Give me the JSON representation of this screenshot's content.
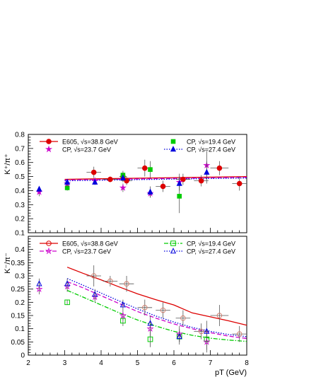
{
  "chart_data": [
    {
      "type": "scatter",
      "panel": "top",
      "ylabel": "K⁺/π⁺",
      "xlim": [
        2,
        8
      ],
      "ylim": [
        0.1,
        0.8
      ],
      "yticks": [
        "0.1",
        "0.2",
        "0.3",
        "0.4",
        "0.5",
        "0.6",
        "0.7",
        "0.8"
      ],
      "legend": [
        {
          "label": "E605, √s=38.8 GeV",
          "color": "#dd0000",
          "marker": "filled-circle",
          "line": "solid"
        },
        {
          "label": "CP, √s=19.4 GeV",
          "color": "#00cc00",
          "marker": "filled-square",
          "line": "none"
        },
        {
          "label": "CP, √s=23.7 GeV",
          "color": "#cc00cc",
          "marker": "star",
          "line": "none"
        },
        {
          "label": "CP, √s=27.4 GeV",
          "color": "#0000dd",
          "marker": "filled-triangle",
          "line": "dotted"
        }
      ],
      "series": [
        {
          "name": "E605, √s=38.8 GeV",
          "color": "#dd0000",
          "marker": "filled-circle",
          "x": [
            3.8,
            4.25,
            4.6,
            4.7,
            5.2,
            5.7,
            6.25,
            6.75,
            7.25,
            7.8
          ],
          "y": [
            0.53,
            0.48,
            0.5,
            0.47,
            0.56,
            0.43,
            0.48,
            0.47,
            0.56,
            0.45
          ],
          "yerr": [
            0.04,
            0.02,
            0.03,
            0.03,
            0.06,
            0.04,
            0.04,
            0.04,
            0.05,
            0.05
          ],
          "xerr": [
            0.2,
            0.2,
            0.1,
            0.15,
            0.2,
            0.2,
            0.2,
            0.2,
            0.25,
            0.2
          ]
        },
        {
          "name": "CP, √s=19.4 GeV",
          "color": "#00cc00",
          "marker": "filled-square",
          "x": [
            3.07,
            4.6,
            5.35,
            6.15
          ],
          "y": [
            0.42,
            0.51,
            0.55,
            0.36
          ],
          "yerr": [
            0.02,
            0.03,
            0.06,
            0.12
          ]
        },
        {
          "name": "CP, √s=23.7 GeV",
          "color": "#cc00cc",
          "marker": "star",
          "x": [
            2.3,
            3.07,
            3.83,
            4.6,
            5.35,
            6.15,
            6.9
          ],
          "y": [
            0.39,
            0.45,
            0.47,
            0.42,
            0.38,
            0.46,
            0.58
          ],
          "yerr": [
            0.03,
            0.02,
            0.02,
            0.03,
            0.03,
            0.06,
            0.1
          ]
        },
        {
          "name": "CP, √s=27.4 GeV",
          "color": "#0000dd",
          "marker": "filled-triangle",
          "x": [
            2.3,
            3.07,
            3.83,
            4.6,
            5.35,
            6.15,
            6.9
          ],
          "y": [
            0.41,
            0.46,
            0.46,
            0.49,
            0.39,
            0.45,
            0.53
          ],
          "yerr": [
            0.02,
            0.02,
            0.02,
            0.03,
            0.04,
            0.05,
            0.08
          ]
        }
      ],
      "curves": [
        {
          "color": "#dd0000",
          "dash": "solid",
          "x": [
            3,
            8
          ],
          "y": [
            0.48,
            0.5
          ]
        },
        {
          "color": "#cc00cc",
          "dash": "dashed",
          "x": [
            3,
            8
          ],
          "y": [
            0.475,
            0.495
          ]
        },
        {
          "color": "#0000dd",
          "dash": "dotted",
          "x": [
            3,
            8
          ],
          "y": [
            0.47,
            0.49
          ]
        }
      ]
    },
    {
      "type": "scatter",
      "panel": "bottom",
      "ylabel": "K⁻/π⁻",
      "xlabel": "pT (GeV)",
      "xlim": [
        2,
        8
      ],
      "ylim": [
        0,
        0.45
      ],
      "xticks": [
        "2",
        "3",
        "4",
        "5",
        "6",
        "7",
        "8"
      ],
      "yticks": [
        "0",
        "0.05",
        "0.1",
        "0.15",
        "0.2",
        "0.25",
        "0.3",
        "0.35",
        "0.4"
      ],
      "legend": [
        {
          "label": "E605, √s=38.8 GeV",
          "color": "#dd0000",
          "marker": "open-circle",
          "line": "solid"
        },
        {
          "label": "CP, √s=19.4 GeV",
          "color": "#00cc00",
          "marker": "open-square",
          "line": "dashdot"
        },
        {
          "label": "CP, √s=23.7 GeV",
          "color": "#cc00cc",
          "marker": "open-star",
          "line": "dashed"
        },
        {
          "label": "CP, √s=27.4 GeV",
          "color": "#0000dd",
          "marker": "open-triangle",
          "line": "dotted"
        }
      ],
      "series": [
        {
          "name": "E605, √s=38.8 GeV",
          "color": "#d08070",
          "marker": "open-circle",
          "x": [
            3.8,
            4.25,
            4.7,
            5.2,
            5.7,
            6.25,
            6.75,
            7.25,
            7.8
          ],
          "y": [
            0.3,
            0.28,
            0.27,
            0.18,
            0.17,
            0.14,
            0.09,
            0.15,
            0.08
          ],
          "yerr": [
            0.04,
            0.02,
            0.03,
            0.03,
            0.03,
            0.03,
            0.03,
            0.04,
            0.03
          ],
          "xerr": [
            0.2,
            0.2,
            0.2,
            0.2,
            0.2,
            0.2,
            0.2,
            0.25,
            0.2
          ]
        },
        {
          "name": "CP, √s=19.4 GeV",
          "color": "#00cc00",
          "marker": "open-square",
          "x": [
            3.07,
            4.6,
            5.35,
            6.15,
            6.9
          ],
          "y": [
            0.2,
            0.13,
            0.06,
            0.07,
            0.06
          ],
          "yerr": [
            0.01,
            0.02,
            0.03,
            0.02,
            0.04
          ]
        },
        {
          "name": "CP, √s=23.7 GeV",
          "color": "#cc00cc",
          "marker": "open-star",
          "x": [
            2.3,
            3.07,
            3.83,
            4.6,
            5.35,
            6.15,
            6.9
          ],
          "y": [
            0.25,
            0.26,
            0.22,
            0.15,
            0.1,
            0.08,
            0.05
          ],
          "yerr": [
            0.02,
            0.02,
            0.02,
            0.02,
            0.03,
            0.03,
            0.04
          ]
        },
        {
          "name": "CP, √s=27.4 GeV",
          "color": "#0000dd",
          "marker": "open-triangle",
          "x": [
            2.3,
            3.07,
            3.83,
            4.6,
            5.35,
            6.15,
            6.9
          ],
          "y": [
            0.27,
            0.27,
            0.23,
            0.19,
            0.12,
            0.07,
            0.09
          ],
          "yerr": [
            0.02,
            0.02,
            0.02,
            0.02,
            0.03,
            0.03,
            0.04
          ]
        }
      ],
      "curves": [
        {
          "color": "#dd0000",
          "dash": "solid",
          "x": [
            3.07,
            3.5,
            4,
            4.5,
            5,
            5.5,
            6,
            6.5,
            7,
            7.5,
            8
          ],
          "y": [
            0.333,
            0.31,
            0.285,
            0.258,
            0.232,
            0.21,
            0.19,
            0.16,
            0.145,
            0.13,
            0.113
          ]
        },
        {
          "color": "#0000dd",
          "dash": "dotted",
          "x": [
            3.07,
            3.5,
            4,
            4.5,
            5,
            5.5,
            6,
            6.5,
            7,
            7.5,
            8
          ],
          "y": [
            0.29,
            0.265,
            0.235,
            0.205,
            0.175,
            0.148,
            0.125,
            0.105,
            0.09,
            0.078,
            0.07
          ]
        },
        {
          "color": "#cc00cc",
          "dash": "dashed",
          "x": [
            3.07,
            3.5,
            4,
            4.5,
            5,
            5.5,
            6,
            6.5,
            7,
            7.5,
            8
          ],
          "y": [
            0.278,
            0.255,
            0.225,
            0.195,
            0.165,
            0.14,
            0.118,
            0.1,
            0.085,
            0.072,
            0.063
          ]
        },
        {
          "color": "#00cc00",
          "dash": "dashdot",
          "x": [
            3.07,
            3.5,
            4,
            4.5,
            5,
            5.5,
            6,
            6.5,
            7,
            7.5,
            8
          ],
          "y": [
            0.245,
            0.22,
            0.19,
            0.16,
            0.133,
            0.11,
            0.09,
            0.075,
            0.064,
            0.057,
            0.052
          ]
        }
      ]
    }
  ]
}
